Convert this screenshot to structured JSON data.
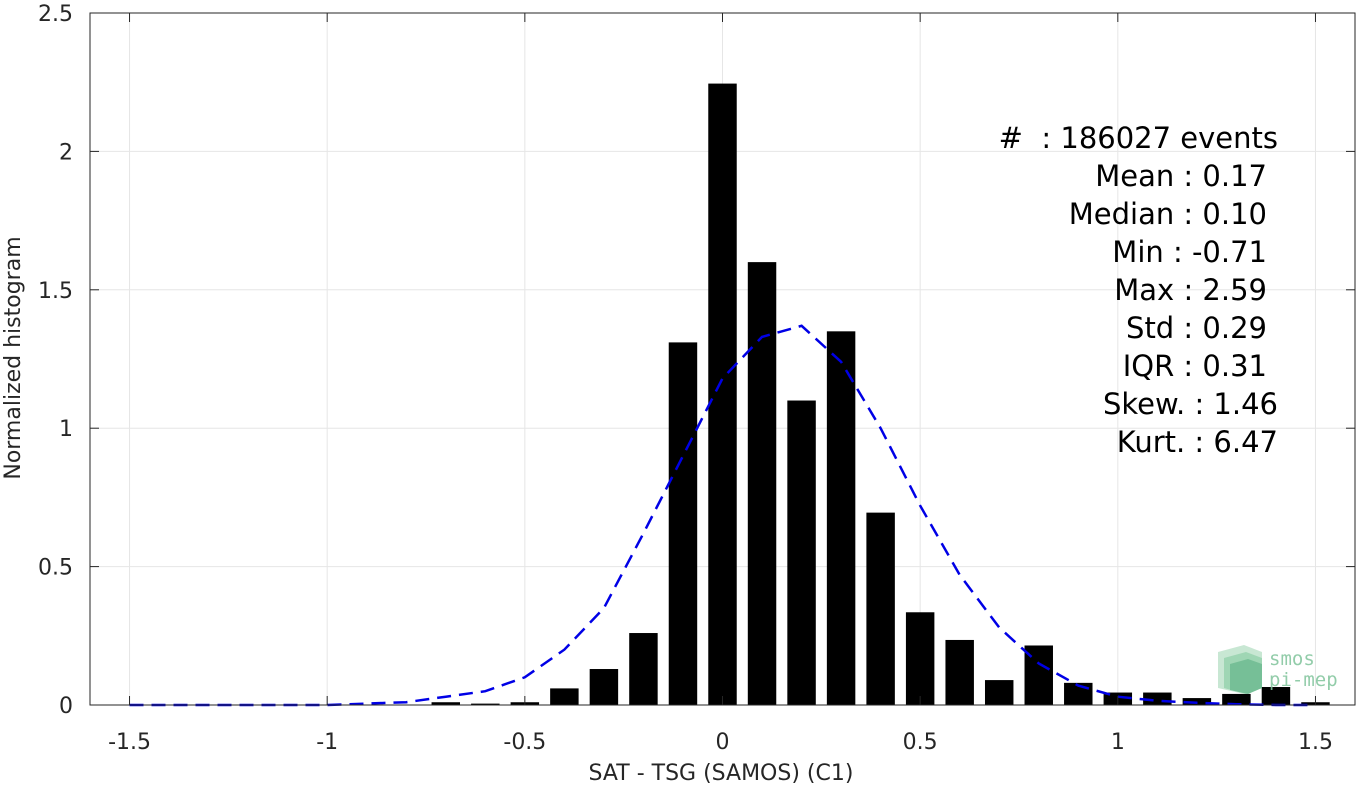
{
  "chart_data": {
    "type": "bar",
    "xlabel": "SAT - TSG (SAMOS) (C1)",
    "ylabel": "Normalized histogram",
    "xlim": [
      -1.6,
      1.6
    ],
    "ylim": [
      0,
      2.5
    ],
    "x_ticks": [
      -1.5,
      -1,
      -0.5,
      0,
      0.5,
      1,
      1.5
    ],
    "x_tick_labels": [
      "-1.5",
      "-1",
      "-0.5",
      "0",
      "0.5",
      "1",
      "1.5"
    ],
    "y_ticks": [
      0,
      0.5,
      1,
      1.5,
      2,
      2.5
    ],
    "y_tick_labels": [
      "0",
      "0.5",
      "1",
      "1.5",
      "2",
      "2.5"
    ],
    "grid": true,
    "bin_width": 0.1,
    "bar_color": "#000000",
    "bars": {
      "x": [
        -0.7,
        -0.6,
        -0.5,
        -0.4,
        -0.3,
        -0.2,
        -0.1,
        0.0,
        0.1,
        0.2,
        0.3,
        0.4,
        0.5,
        0.6,
        0.7,
        0.8,
        0.9,
        1.0,
        1.1,
        1.2,
        1.3,
        1.4,
        1.5
      ],
      "values": [
        0.01,
        0.005,
        0.01,
        0.06,
        0.13,
        0.26,
        1.31,
        2.245,
        1.6,
        1.1,
        1.35,
        0.695,
        0.335,
        0.235,
        0.09,
        0.215,
        0.08,
        0.045,
        0.045,
        0.025,
        0.04,
        0.065,
        0.01
      ]
    },
    "fit_curve": {
      "style": "dashed",
      "color": "#0000e6",
      "x": [
        -1.5,
        -1.4,
        -1.3,
        -1.2,
        -1.1,
        -1.0,
        -0.9,
        -0.8,
        -0.7,
        -0.6,
        -0.5,
        -0.4,
        -0.3,
        -0.2,
        -0.1,
        0.0,
        0.1,
        0.2,
        0.3,
        0.4,
        0.5,
        0.6,
        0.7,
        0.8,
        0.9,
        1.0,
        1.1,
        1.2,
        1.3,
        1.4,
        1.5
      ],
      "y": [
        0,
        0,
        0,
        0,
        0,
        0,
        0.005,
        0.01,
        0.03,
        0.05,
        0.1,
        0.2,
        0.35,
        0.62,
        0.9,
        1.18,
        1.33,
        1.37,
        1.24,
        1.0,
        0.72,
        0.47,
        0.28,
        0.15,
        0.07,
        0.03,
        0.015,
        0.008,
        0.003,
        0,
        0
      ]
    },
    "annotations": {
      "lines": [
        "#  : 186027 events",
        "Mean : 0.17",
        "Median : 0.10",
        "Min : -0.71",
        "Max : 2.59",
        "Std : 0.29",
        "IQR : 0.31",
        "Skew. : 1.46",
        "Kurt. : 6.47"
      ]
    }
  },
  "logo": {
    "line1": "smos",
    "line2": "pi-mep",
    "color": "#7fc49b"
  }
}
